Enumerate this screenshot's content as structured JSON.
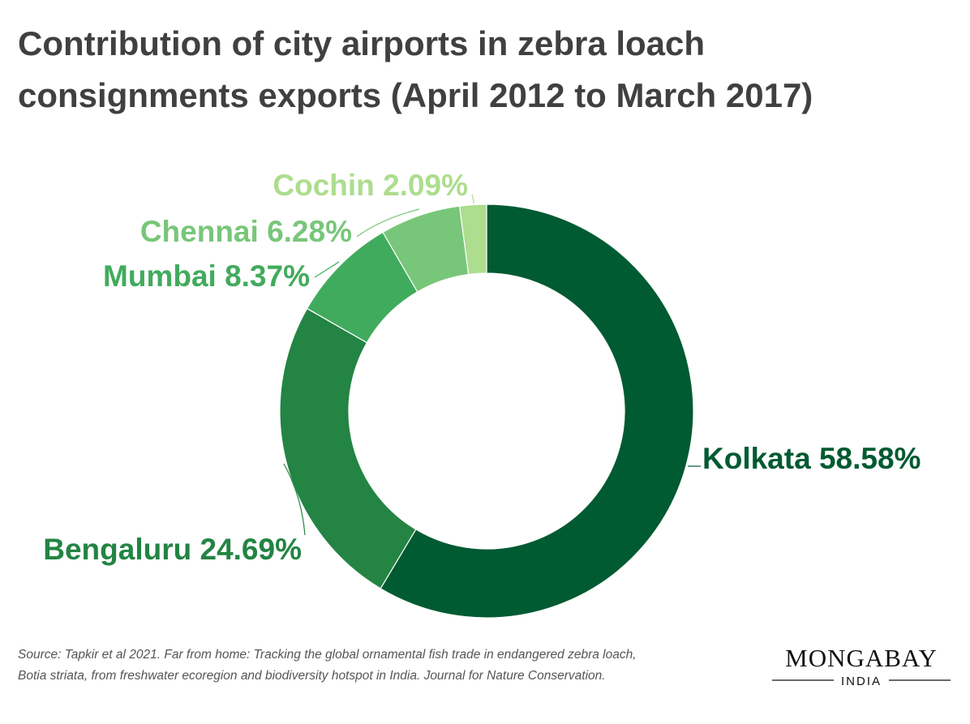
{
  "chart_data": {
    "type": "donut",
    "title": [
      "Contribution of city airports in zebra loach",
      "consignments exports (April 2012 to March 2017)"
    ],
    "categories": [
      "Kolkata",
      "Bengaluru",
      "Mumbai",
      "Chennai",
      "Cochin"
    ],
    "values": [
      58.58,
      24.69,
      8.37,
      6.28,
      2.09
    ],
    "value_labels": [
      "58.58%",
      "24.69%",
      "8.37%",
      "6.28%",
      "2.09%"
    ],
    "colors": [
      "#005a32",
      "#238443",
      "#41ab5d",
      "#78c679",
      "#addd8e"
    ],
    "source": [
      "Source: Tapkir et al 2021. Far from home: Tracking the global ornamental fish trade in endangered zebra loach,",
      "Botia striata, from freshwater ecoregion and biodiversity hotspot in India. Journal for Nature Conservation."
    ],
    "logo": "MONGABAY",
    "logo_sub": "INDIA"
  }
}
